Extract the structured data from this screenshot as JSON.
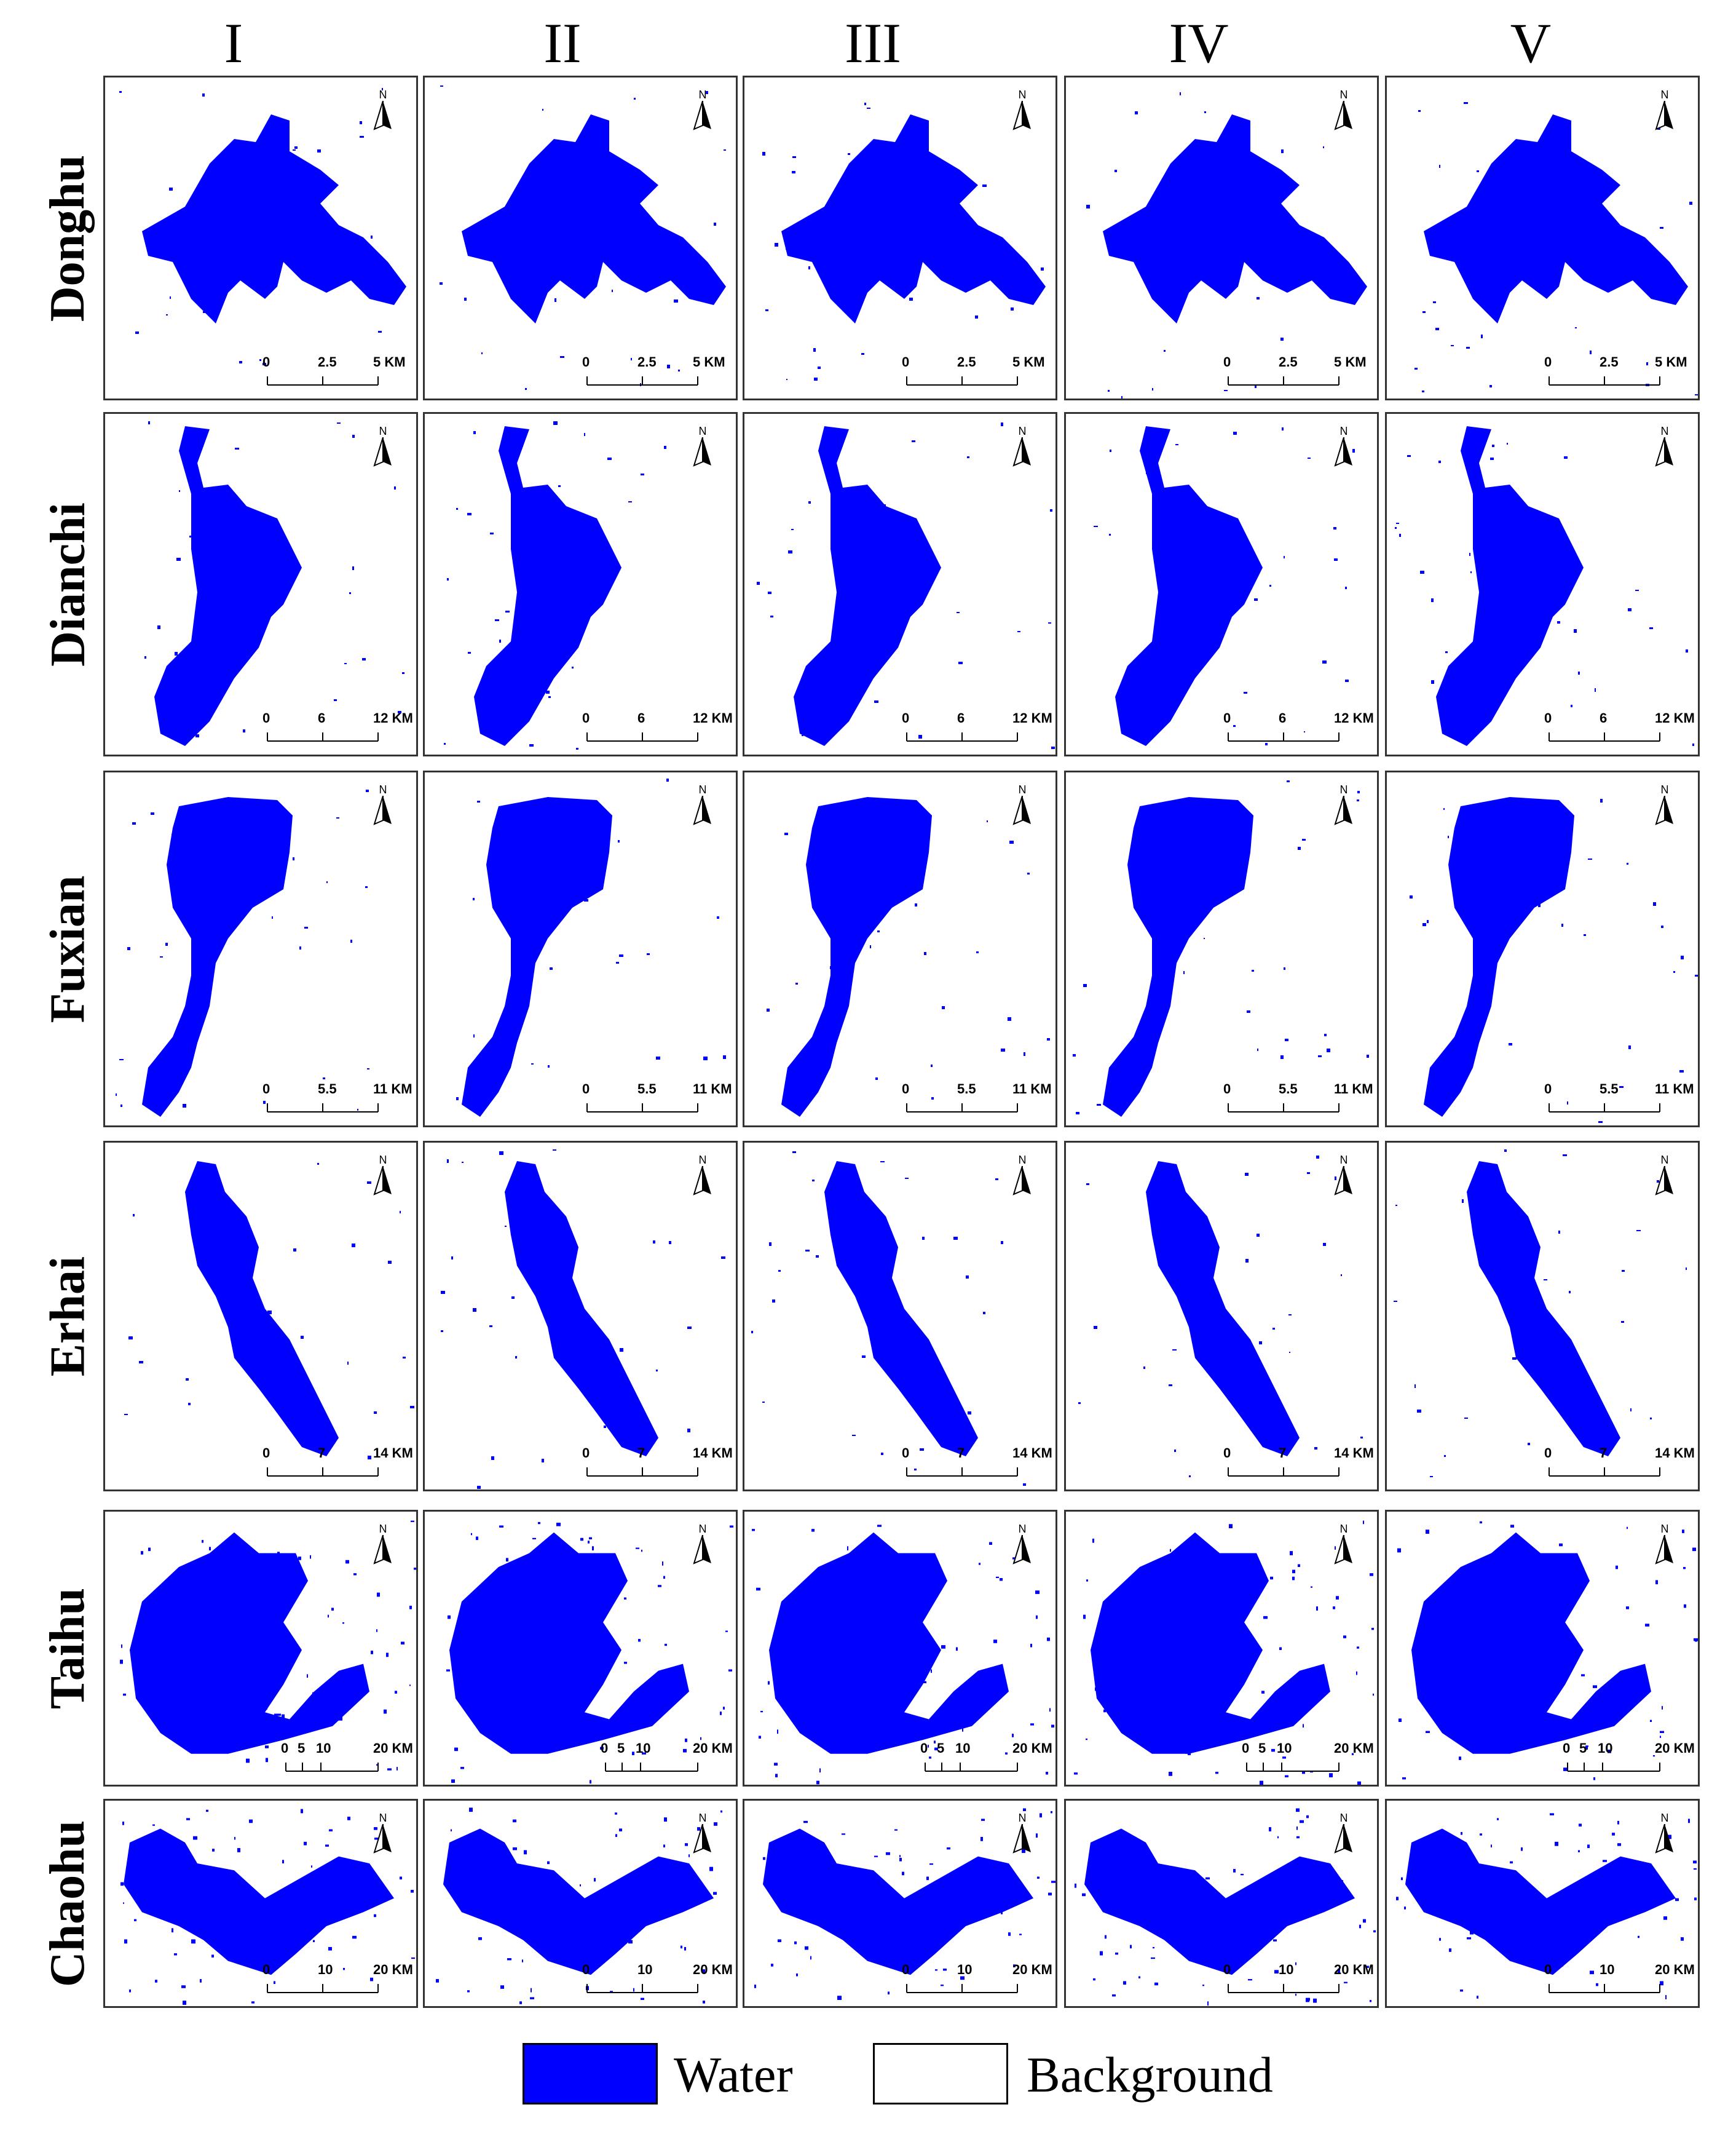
{
  "columns": [
    "I",
    "II",
    "III",
    "IV",
    "V"
  ],
  "rows": [
    {
      "name": "Donghu",
      "scale": [
        "0",
        "2.5",
        "5 KM"
      ]
    },
    {
      "name": "Dianchi",
      "scale": [
        "0",
        "6",
        "12 KM"
      ]
    },
    {
      "name": "Fuxian",
      "scale": [
        "0",
        "5.5",
        "11 KM"
      ]
    },
    {
      "name": "Erhai",
      "scale": [
        "0",
        "7",
        "14 KM"
      ]
    },
    {
      "name": "Taihu",
      "scale": [
        "0",
        "5",
        "10",
        "20 KM"
      ]
    },
    {
      "name": "Chaohu",
      "scale": [
        "0",
        "10",
        "20 KM"
      ]
    }
  ],
  "north_label": "N",
  "legend": {
    "water_label": "Water",
    "background_label": "Background"
  },
  "colors": {
    "water": "#0000ff",
    "background": "#ffffff",
    "border": "#333333"
  }
}
